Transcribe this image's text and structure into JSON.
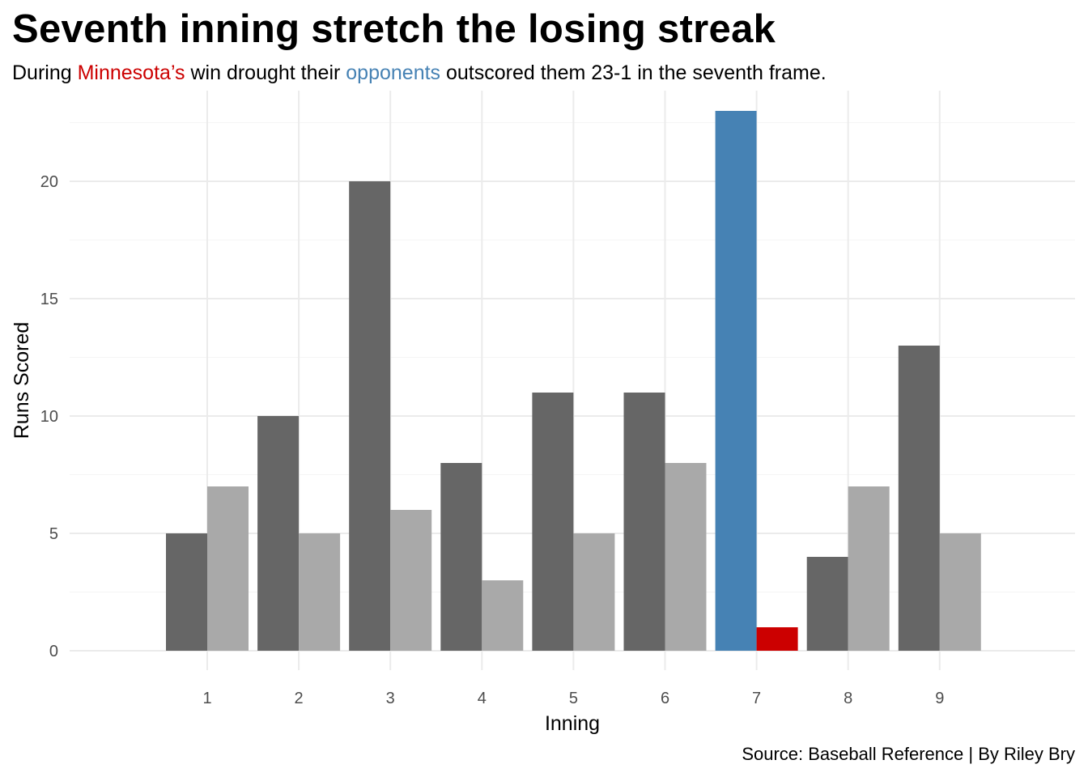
{
  "title": "Seventh inning stretch the losing streak",
  "subtitle": {
    "part1": "During ",
    "team": "Minnesota’s",
    "part2": " win drought their ",
    "opponents": "opponents",
    "part3": " outscored them 23-1 in the seventh frame."
  },
  "caption": "Source: Baseball Reference | By Riley Bry",
  "colors": {
    "opponents_default": "#666666",
    "minnesota_default": "#a9a9a9",
    "opponents_highlight": "#4682b4",
    "minnesota_highlight": "#cc0000",
    "grid": "#ebebeb"
  },
  "chart_data": {
    "type": "bar",
    "xlabel": "Inning",
    "ylabel": "Runs Scored",
    "categories": [
      "1",
      "2",
      "3",
      "4",
      "5",
      "6",
      "7",
      "8",
      "9"
    ],
    "series": [
      {
        "values": [
          5,
          10,
          20,
          8,
          11,
          11,
          23,
          4,
          13
        ]
      },
      {
        "values": [
          7,
          5,
          6,
          3,
          5,
          8,
          1,
          7,
          5
        ]
      }
    ],
    "highlight_category": "7",
    "yticks": [
      0,
      5,
      10,
      15,
      20
    ],
    "ylim": [
      0,
      23
    ],
    "grid": true
  }
}
